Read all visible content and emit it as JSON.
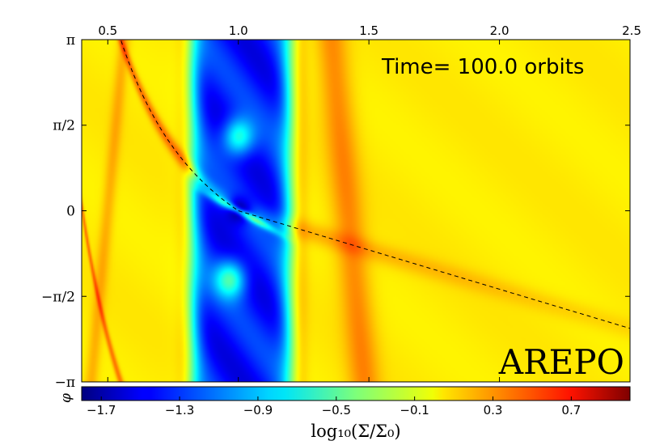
{
  "chart_data": {
    "type": "heatmap",
    "title": "",
    "annotation": "Time= 100.0 orbits",
    "code_label": "AREPO",
    "xlabel": "",
    "ylabel": "φ",
    "xlim": [
      0.4,
      2.5
    ],
    "ylim": [
      "-π",
      "π"
    ],
    "x_ticks": [
      "0.5",
      "1.0",
      "1.5",
      "2.0",
      "2.5"
    ],
    "x_tick_values": [
      0.5,
      1.0,
      1.5,
      2.0,
      2.5
    ],
    "y_ticks": [
      "π",
      "π/2",
      "0",
      "−π/2",
      "−π"
    ],
    "y_tick_values": [
      3.1416,
      1.5708,
      0,
      -1.5708,
      -3.1416
    ],
    "x_axis_position": "top",
    "colormap": "jet",
    "colorbar": {
      "label": "log₁₀(Σ/Σ₀)",
      "vmin": -1.8,
      "vmax": 1.0,
      "ticks": [
        "−1.7",
        "−1.3",
        "−0.9",
        "−0.5",
        "−0.1",
        "0.3",
        "0.7"
      ],
      "tick_values": [
        -1.7,
        -1.3,
        -0.9,
        -0.5,
        -0.1,
        0.3,
        0.7
      ],
      "position": "bottom"
    },
    "features": {
      "background_level": 0.0,
      "gap_r_range": [
        0.83,
        1.19
      ],
      "gap_level": -1.4,
      "planet_r": 1.0,
      "planet_phi": 0.0,
      "planet_level": -1.8,
      "outer_arm_level": 0.25,
      "inner_arm_level": 0.5,
      "reference_curves": [
        {
          "name": "inner-wake-1",
          "style": "dashed"
        },
        {
          "name": "inner-wake-2",
          "style": "dashed"
        },
        {
          "name": "outer-wake-1",
          "style": "dashed"
        },
        {
          "name": "outer-wake-2",
          "style": "dashed"
        },
        {
          "name": "outer-wake-3",
          "style": "dashed"
        }
      ]
    },
    "grid": false
  }
}
